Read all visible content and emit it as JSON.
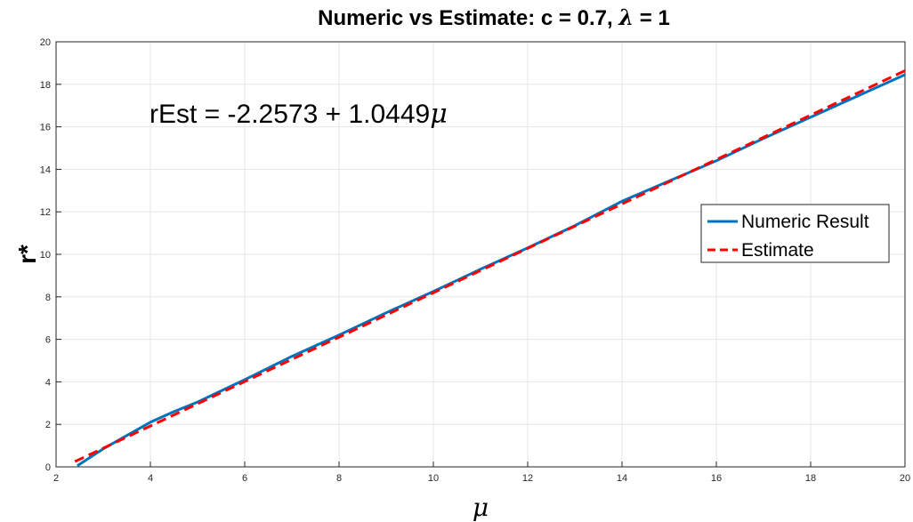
{
  "chart_data": {
    "type": "line",
    "title": "Numeric vs Estimate: c = 0.7, λ = 1",
    "title_parts": {
      "prefix": "Numeric vs Estimate: c = 0.7, ",
      "symbol": "λ",
      "suffix": " = 1"
    },
    "xlabel": "μ",
    "ylabel": "r*",
    "xlim": [
      2,
      20
    ],
    "ylim": [
      0,
      20
    ],
    "xticks": [
      2,
      4,
      6,
      8,
      10,
      12,
      14,
      16,
      18,
      20
    ],
    "yticks": [
      0,
      2,
      4,
      6,
      8,
      10,
      12,
      14,
      16,
      18,
      20
    ],
    "grid": true,
    "legend_position": "right",
    "annotation": {
      "prefix": "rEst = -2.2573 + 1.0449",
      "symbol": "μ"
    },
    "series": [
      {
        "name": "Numeric Result",
        "color": "#0072BD",
        "style": "solid",
        "x": [
          2.45,
          3.0,
          4.0,
          4.5,
          5.0,
          6.0,
          7.0,
          8.0,
          9.0,
          10.0,
          11.0,
          12.0,
          13.0,
          14.0,
          15.0,
          16.0,
          17.0,
          18.0,
          19.0,
          20.0
        ],
        "y": [
          0.05,
          0.85,
          2.1,
          2.6,
          3.05,
          4.1,
          5.2,
          6.2,
          7.25,
          8.25,
          9.3,
          10.3,
          11.35,
          12.5,
          13.45,
          14.4,
          15.45,
          16.45,
          17.45,
          18.45
        ]
      },
      {
        "name": "Estimate",
        "color": "#FF0000",
        "style": "dashed",
        "x": [
          2.4,
          20.0
        ],
        "y": [
          0.2502,
          18.6407
        ]
      }
    ]
  }
}
